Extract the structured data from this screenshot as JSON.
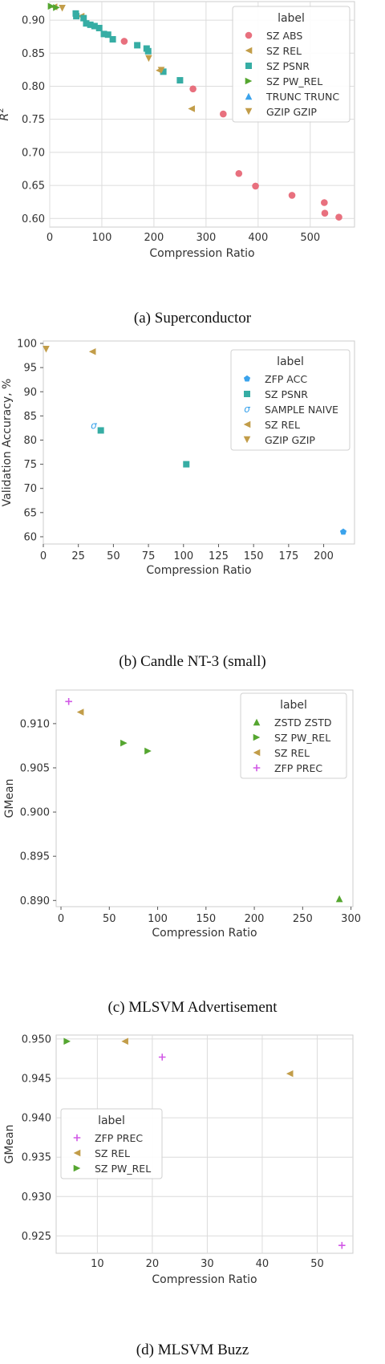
{
  "colors": {
    "pink": "#e8707e",
    "goldbrown": "#c29d49",
    "teal": "#36ada4",
    "green": "#55a630",
    "blue": "#3ba3ec",
    "magenta": "#d158e6"
  },
  "chart_data": [
    {
      "type": "scatter",
      "caption": "(a) Superconductor",
      "xlabel": "Compression Ratio",
      "ylabel": "R^2",
      "xlim": [
        0,
        585
      ],
      "ylim": [
        0.587,
        0.928
      ],
      "xticks": [
        0,
        100,
        200,
        300,
        400,
        500
      ],
      "yticks": [
        0.6,
        0.65,
        0.7,
        0.75,
        0.8,
        0.85,
        0.9
      ],
      "grid": true,
      "legend_title": "label",
      "legend_position": "top-right",
      "series": [
        {
          "name": "SZ ABS",
          "marker": "circle",
          "color": "#e8707e",
          "x": [
            143,
            275,
            333,
            363,
            395,
            465,
            527,
            528,
            555
          ],
          "y": [
            0.868,
            0.796,
            0.758,
            0.668,
            0.649,
            0.635,
            0.624,
            0.608,
            0.602
          ]
        },
        {
          "name": "SZ REL",
          "marker": "tri-left",
          "color": "#c29d49",
          "x": [
            8,
            60,
            210,
            272
          ],
          "y": [
            0.92,
            0.906,
            0.824,
            0.766
          ]
        },
        {
          "name": "SZ PSNR",
          "marker": "square",
          "color": "#36ada4",
          "x": [
            50,
            51,
            65,
            70,
            78,
            86,
            95,
            104,
            112,
            121,
            168,
            186,
            189,
            218,
            250
          ],
          "y": [
            0.91,
            0.906,
            0.903,
            0.895,
            0.893,
            0.891,
            0.888,
            0.879,
            0.878,
            0.871,
            0.862,
            0.857,
            0.853,
            0.822,
            0.809
          ]
        },
        {
          "name": "SZ PW_REL",
          "marker": "tri-right",
          "color": "#55a630",
          "x": [
            3,
            13
          ],
          "y": [
            0.921,
            0.919
          ]
        },
        {
          "name": "TRUNC TRUNC",
          "marker": "tri-up",
          "color": "#3ba3ec",
          "x": [],
          "y": []
        },
        {
          "name": "GZIP GZIP",
          "marker": "tri-down",
          "color": "#c29d49",
          "x": [
            24,
            190,
            214
          ],
          "y": [
            0.918,
            0.842,
            0.824
          ]
        }
      ]
    },
    {
      "type": "scatter",
      "caption": "(b) Candle NT-3 (small)",
      "xlabel": "Compression Ratio",
      "ylabel": "Validation Accuracy, %",
      "xlim": [
        0,
        222
      ],
      "ylim": [
        58.5,
        100.5
      ],
      "xticks": [
        0,
        25,
        50,
        75,
        100,
        125,
        150,
        175,
        200
      ],
      "yticks": [
        60,
        65,
        70,
        75,
        80,
        85,
        90,
        95,
        100
      ],
      "grid": false,
      "legend_title": "label",
      "legend_position": "top-right",
      "series": [
        {
          "name": "ZFP ACC",
          "marker": "pentagon",
          "color": "#3ba3ec",
          "x": [
            214
          ],
          "y": [
            61.0
          ]
        },
        {
          "name": "SZ PSNR",
          "marker": "square",
          "color": "#36ada4",
          "x": [
            41,
            102
          ],
          "y": [
            82.0,
            75.0
          ]
        },
        {
          "name": "SAMPLE NAIVE",
          "marker": "sigma",
          "color": "#3ba3ec",
          "x": [
            36
          ],
          "y": [
            83.0
          ]
        },
        {
          "name": "SZ REL",
          "marker": "tri-left",
          "color": "#c29d49",
          "x": [
            35
          ],
          "y": [
            98.3
          ]
        },
        {
          "name": "GZIP GZIP",
          "marker": "tri-down",
          "color": "#c29d49",
          "x": [
            2
          ],
          "y": [
            98.8
          ]
        }
      ]
    },
    {
      "type": "scatter",
      "caption": "(c) MLSVM Advertisement",
      "xlabel": "Compression Ratio",
      "ylabel": "GMean",
      "xlim": [
        -5,
        302
      ],
      "ylim": [
        0.8893,
        0.9138
      ],
      "xticks": [
        0,
        50,
        100,
        150,
        200,
        250,
        300
      ],
      "yticks": [
        0.89,
        0.895,
        0.9,
        0.905,
        0.91
      ],
      "grid": false,
      "legend_title": "label",
      "legend_position": "top-right",
      "series": [
        {
          "name": "ZSTD ZSTD",
          "marker": "tri-up",
          "color": "#55a630",
          "x": [
            288
          ],
          "y": [
            0.8902
          ]
        },
        {
          "name": "SZ PW_REL",
          "marker": "tri-right",
          "color": "#55a630",
          "x": [
            65,
            90
          ],
          "y": [
            0.9078,
            0.9069
          ]
        },
        {
          "name": "SZ REL",
          "marker": "tri-left",
          "color": "#c29d49",
          "x": [
            20
          ],
          "y": [
            0.9113
          ]
        },
        {
          "name": "ZFP PREC",
          "marker": "plus",
          "color": "#d158e6",
          "x": [
            8
          ],
          "y": [
            0.9125
          ]
        }
      ]
    },
    {
      "type": "scatter",
      "caption": "(d) MLSVM Buzz",
      "xlabel": "Compression Ratio",
      "ylabel": "GMean",
      "xlim": [
        2.5,
        56.5
      ],
      "ylim": [
        0.9228,
        0.9505
      ],
      "xticks": [
        10,
        20,
        30,
        40,
        50
      ],
      "yticks": [
        0.925,
        0.93,
        0.935,
        0.94,
        0.945,
        0.95
      ],
      "grid": true,
      "legend_title": "label",
      "legend_position": "bottom-left",
      "series": [
        {
          "name": "ZFP PREC",
          "marker": "plus",
          "color": "#d158e6",
          "x": [
            21.8,
            54.5
          ],
          "y": [
            0.9477,
            0.9238
          ]
        },
        {
          "name": "SZ REL",
          "marker": "tri-left",
          "color": "#c29d49",
          "x": [
            15,
            45
          ],
          "y": [
            0.9497,
            0.9456
          ]
        },
        {
          "name": "SZ PW_REL",
          "marker": "tri-right",
          "color": "#55a630",
          "x": [
            4.5
          ],
          "y": [
            0.9497
          ]
        }
      ]
    }
  ]
}
